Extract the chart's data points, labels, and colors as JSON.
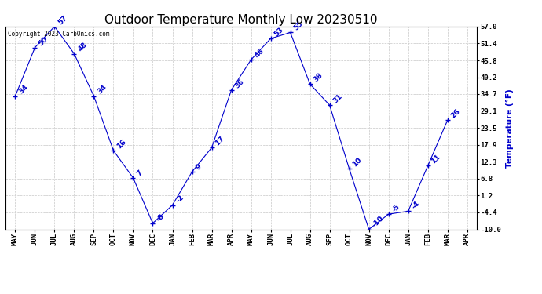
{
  "title": "Outdoor Temperature Monthly Low 20230510",
  "ylabel": "Temperature (°F)",
  "copyright": "Copyright 2023 CarbOnics.com",
  "months": [
    "MAY",
    "JUN",
    "JUL",
    "AUG",
    "SEP",
    "OCT",
    "NOV",
    "DEC",
    "JAN",
    "FEB",
    "MAR",
    "APR",
    "MAY",
    "JUN",
    "JUL",
    "AUG",
    "SEP",
    "OCT",
    "NOV",
    "DEC",
    "JAN",
    "FEB",
    "MAR",
    "APR"
  ],
  "values": [
    34,
    50,
    57,
    48,
    34,
    16,
    7,
    -8,
    -2,
    9,
    17,
    36,
    46,
    53,
    55,
    38,
    31,
    10,
    -10,
    -5,
    -4,
    11,
    26,
    null
  ],
  "ylim": [
    -10.0,
    57.0
  ],
  "yticks": [
    57.0,
    51.4,
    45.8,
    40.2,
    34.7,
    29.1,
    23.5,
    17.9,
    12.3,
    6.8,
    1.2,
    -4.4,
    -10.0
  ],
  "line_color": "#0000cc",
  "marker_color": "#0000cc",
  "grid_color": "#c8c8c8",
  "bg_color": "#ffffff",
  "title_color": "#000000",
  "label_color": "#0000cc",
  "point_label_color": "#0000cc",
  "title_fontsize": 11,
  "axis_label_fontsize": 7.5,
  "point_label_fontsize": 6.5,
  "tick_fontsize": 6.5,
  "copyright_fontsize": 5.5
}
